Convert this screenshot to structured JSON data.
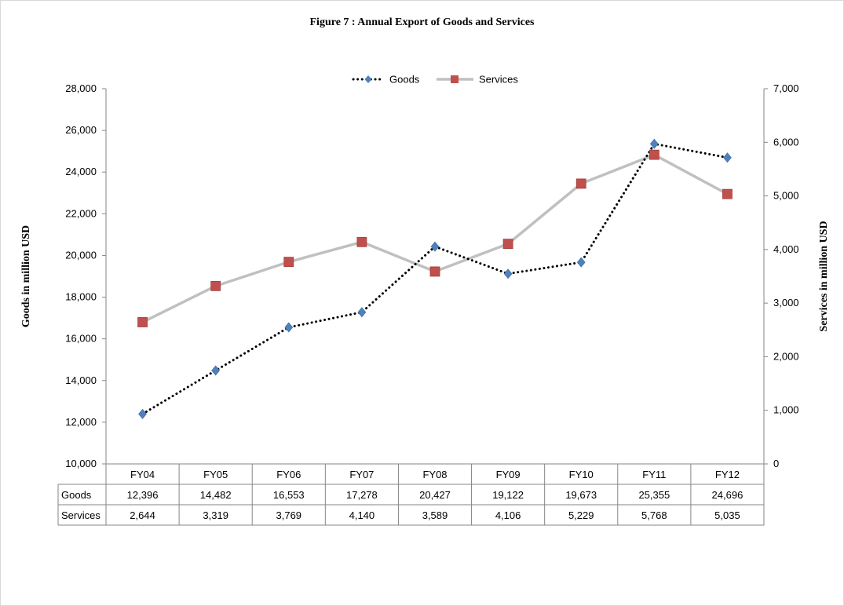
{
  "chart_data": {
    "type": "line",
    "title": "Figure  7 : Annual Export of Goods and Services",
    "categories": [
      "FY04",
      "FY05",
      "FY06",
      "FY07",
      "FY08",
      "FY09",
      "FY10",
      "FY11",
      "FY12"
    ],
    "series": [
      {
        "name": "Goods",
        "axis": "left",
        "values": [
          12396,
          14482,
          16553,
          17278,
          20427,
          19122,
          19673,
          25355,
          24696
        ],
        "labels": [
          "12,396",
          "14,482",
          "16,553",
          "17,278",
          "20,427",
          "19,122",
          "19,673",
          "25,355",
          "24,696"
        ],
        "line_color": "#000000",
        "line_style": "dotted",
        "marker": "diamond",
        "marker_color": "#4f81bd"
      },
      {
        "name": "Services",
        "axis": "right",
        "values": [
          2644,
          3319,
          3769,
          4140,
          3589,
          4106,
          5229,
          5768,
          5035
        ],
        "labels": [
          "2,644",
          "3,319",
          "3,769",
          "4,140",
          "3,589",
          "4,106",
          "5,229",
          "5,768",
          "5,035"
        ],
        "line_color": "#c0c0c0",
        "line_style": "solid",
        "marker": "square",
        "marker_color": "#c0504d"
      }
    ],
    "y_left": {
      "label": "Goods in million USD",
      "ylim": [
        10000,
        28000
      ],
      "ticks": [
        "10,000",
        "12,000",
        "14,000",
        "16,000",
        "18,000",
        "20,000",
        "22,000",
        "24,000",
        "26,000",
        "28,000"
      ]
    },
    "y_right": {
      "label": "Services in million  USD",
      "ylim": [
        0,
        7000
      ],
      "ticks": [
        "0",
        "1,000",
        "2,000",
        "3,000",
        "4,000",
        "5,000",
        "6,000",
        "7,000"
      ]
    },
    "legend": {
      "position": "top",
      "entries": [
        "Goods",
        "Services"
      ]
    },
    "data_table": true,
    "grid": false
  }
}
